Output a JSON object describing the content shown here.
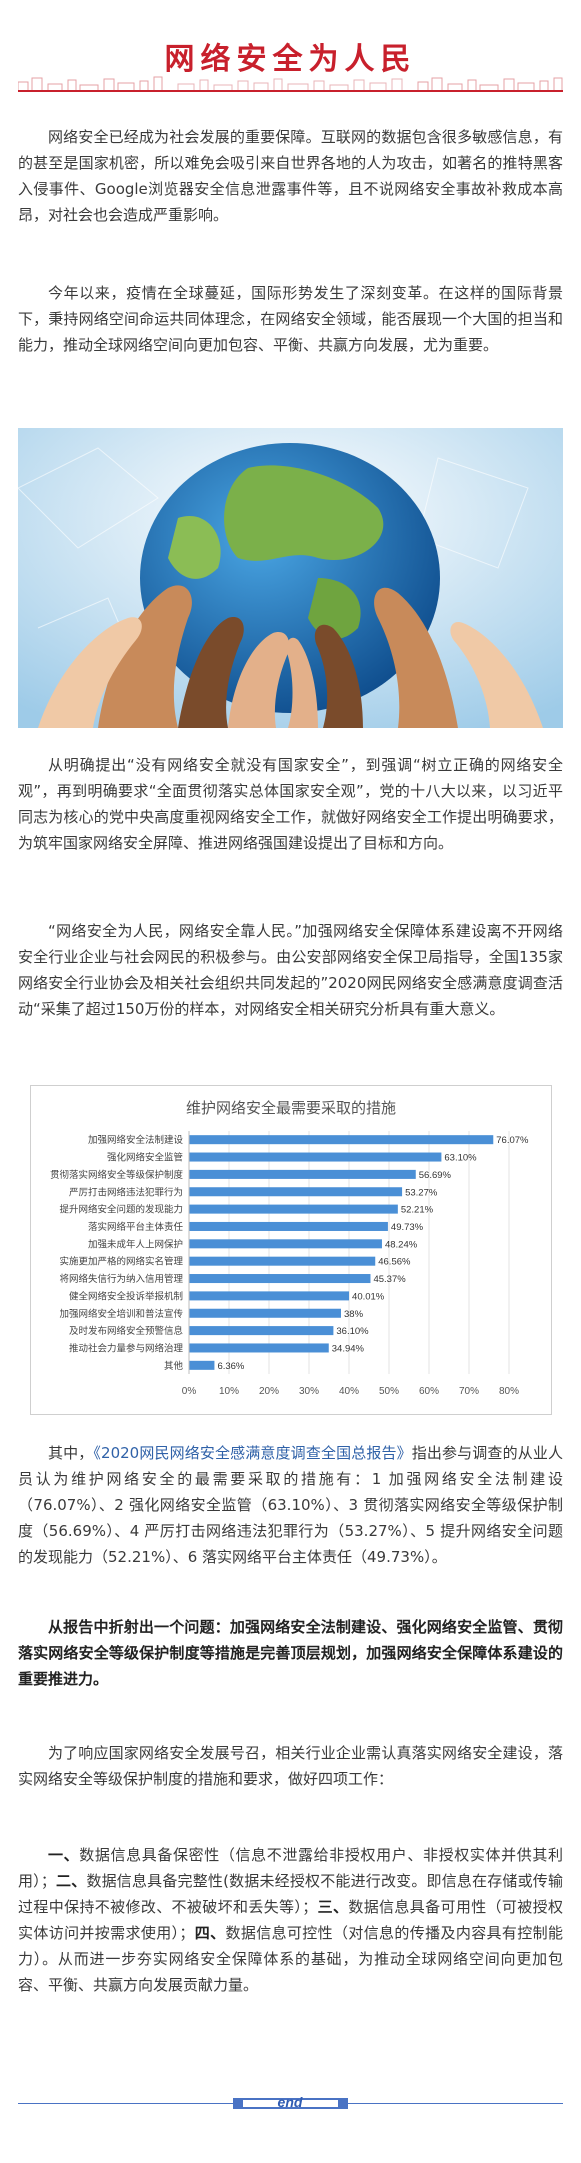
{
  "header": {
    "title": "网络安全为人民",
    "accent": "#c8202c"
  },
  "paragraphs": {
    "p1": "网络安全已经成为社会发展的重要保障。互联网的数据包含很多敏感信息，有的甚至是国家机密，所以难免会吸引来自世界各地的人为攻击，如著名的推特黑客入侵事件、Google浏览器安全信息泄露事件等，且不说网络安全事故补救成本高昂，对社会也会造成严重影响。",
    "p2": "今年以来，疫情在全球蔓延，国际形势发生了深刻变革。在这样的国际背景下，秉持网络空间命运共同体理念，在网络安全领域，能否展现一个大国的担当和能力，推动全球网络空间向更加包容、平衡、共赢方向发展，尤为重要。",
    "p3": "从明确提出“没有网络安全就没有国家安全”，到强调“树立正确的网络安全观”，再到明确要求“全面贯彻落实总体国家安全观”，党的十八大以来，以习近平同志为核心的党中央高度重视网络安全工作，就做好网络安全工作提出明确要求，为筑牢国家网络安全屏障、推进网络强国建设提出了目标和方向。",
    "p4": "“网络安全为人民，网络安全靠人民。”加强网络安全保障体系建设离不开网络安全行业企业与社会网民的积极参与。由公安部网络安全保卫局指导，全国135家网络安全行业协会及相关社会组织共同发起的”2020网民网络安全感满意度调查活动“采集了超过150万份的样本，对网络安全相关研究分析具有重大意义。",
    "p5_pre": "其中，",
    "p5_link": "《2020网民网络安全感满意度调查全国总报告》",
    "p5_post": "指出参与调查的从业人员认为维护网络安全的最需要采取的措施有：1 加强网络安全法制建设（76.07%）、2 强化网络安全监管（63.10%）、3 贯彻落实网络安全等级保护制度（56.69%）、4 严厉打击网络违法犯罪行为（53.27%）、5 提升网络安全问题的发现能力（52.21%）、6 落实网络平台主体责任（49.73%）。",
    "p6": "从报告中折射出一个问题：加强网络安全法制建设、强化网络安全监管、贯彻落实网络安全等级保护制度等措施是完善顶层规划，加强网络安全保障体系建设的重要推进力。",
    "p7": "为了响应国家网络安全发展号召，相关行业企业需认真落实网络安全建设，落实网络安全等级保护制度的措施和要求，做好四项工作：",
    "p8_h1": "一、",
    "p8_t1": "数据信息具备保密性（信息不泄露给非授权用户、非授权实体并供其利用）；",
    "p8_h2": "二、",
    "p8_t2": "数据信息具备完整性(数据未经授权不能进行改变。即信息在存储或传输过程中保持不被修改、不被破坏和丢失等）；",
    "p8_h3": "三、",
    "p8_t3": "数据信息具备可用性（可被授权实体访问并按需求使用）；",
    "p8_h4": "四、",
    "p8_t4": "数据信息可控性（对信息的传播及内容具有控制能力）。从而进一步夯实网络安全保障体系的基础，为推动全球网络空间向更加包容、平衡、共赢方向发展贡献力量。"
  },
  "footer": {
    "end_label": "end",
    "line_color": "#4a73c4"
  },
  "chart_data": {
    "type": "bar",
    "orientation": "horizontal",
    "title": "维护网络安全最需要采取的措施",
    "categories": [
      "加强网络安全法制建设",
      "强化网络安全监管",
      "贯彻落实网络安全等级保护制度",
      "严厉打击网络违法犯罪行为",
      "提升网络安全问题的发现能力",
      "落实网络平台主体责任",
      "加强未成年人上网保护",
      "实施更加严格的网络实名管理",
      "将网络失信行为纳入信用管理",
      "健全网络安全投诉举报机制",
      "加强网络安全培训和普法宣传",
      "及时发布网络安全预警信息",
      "推动社会力量参与网络治理",
      "其他"
    ],
    "values": [
      76.07,
      63.1,
      56.69,
      53.27,
      52.21,
      49.73,
      48.24,
      46.56,
      45.37,
      40.01,
      38,
      36.1,
      34.94,
      6.36
    ],
    "value_labels": [
      "76.07%",
      "63.10%",
      "56.69%",
      "53.27%",
      "52.21%",
      "49.73%",
      "48.24%",
      "46.56%",
      "45.37%",
      "40.01%",
      "38%",
      "36.10%",
      "34.94%",
      "6.36%"
    ],
    "x_ticks": [
      "0%",
      "10%",
      "20%",
      "30%",
      "40%",
      "50%",
      "60%",
      "70%",
      "80%"
    ],
    "xlim": [
      0,
      80
    ],
    "bar_color": "#4a8fd6",
    "grid": true
  }
}
